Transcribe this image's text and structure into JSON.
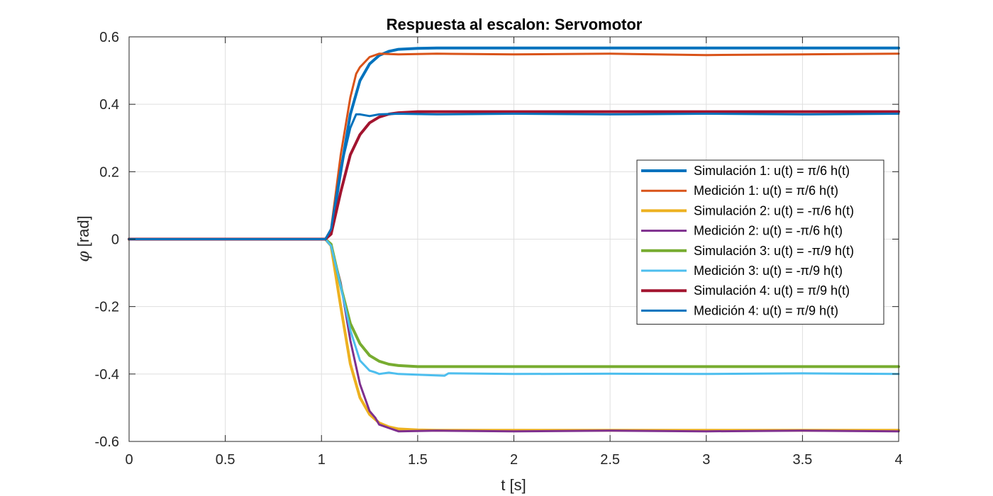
{
  "chart_data": {
    "type": "line",
    "title": "Respuesta al escalon: Servomotor",
    "xlabel": "t [s]",
    "ylabel_symbol": "φ",
    "ylabel_unit": "[rad]",
    "xlim": [
      0,
      4
    ],
    "ylim": [
      -0.6,
      0.6
    ],
    "xticks": [
      0,
      0.5,
      1,
      1.5,
      2,
      2.5,
      3,
      3.5,
      4
    ],
    "xtick_labels": [
      "0",
      "0.5",
      "1",
      "1.5",
      "2",
      "2.5",
      "3",
      "3.5",
      "4"
    ],
    "yticks": [
      -0.6,
      -0.4,
      -0.2,
      0,
      0.2,
      0.4,
      0.6
    ],
    "ytick_labels": [
      "-0.6",
      "-0.4",
      "-0.2",
      "0",
      "0.2",
      "0.4",
      "0.6"
    ],
    "grid": true,
    "legend_position": "right",
    "series": [
      {
        "name": "Simulación 1: u(t) = π/6 h(t)",
        "color": "#0072BD",
        "kind": "simulation",
        "x": [
          0,
          1.02,
          1.05,
          1.1,
          1.15,
          1.2,
          1.25,
          1.3,
          1.35,
          1.4,
          1.5,
          1.6,
          2.0,
          4.0
        ],
        "y": [
          0,
          0,
          0.02,
          0.2,
          0.37,
          0.47,
          0.52,
          0.545,
          0.557,
          0.563,
          0.566,
          0.567,
          0.567,
          0.567
        ]
      },
      {
        "name": "Medición 1: u(t) = π/6 h(t)",
        "color": "#D95319",
        "kind": "measurement",
        "x": [
          0,
          0.5,
          1.02,
          1.05,
          1.1,
          1.15,
          1.18,
          1.2,
          1.25,
          1.3,
          1.4,
          1.6,
          2.0,
          2.5,
          3.0,
          3.5,
          4.0
        ],
        "y": [
          0,
          0,
          0,
          0.03,
          0.25,
          0.42,
          0.49,
          0.51,
          0.54,
          0.55,
          0.548,
          0.55,
          0.548,
          0.55,
          0.546,
          0.548,
          0.55
        ]
      },
      {
        "name": "Simulación 2: u(t) = -π/6 h(t)",
        "color": "#EDB120",
        "kind": "simulation",
        "x": [
          0,
          1.02,
          1.05,
          1.1,
          1.15,
          1.2,
          1.25,
          1.3,
          1.35,
          1.4,
          1.5,
          1.6,
          2.0,
          4.0
        ],
        "y": [
          0,
          0,
          -0.02,
          -0.2,
          -0.37,
          -0.47,
          -0.52,
          -0.545,
          -0.557,
          -0.563,
          -0.566,
          -0.567,
          -0.567,
          -0.567
        ]
      },
      {
        "name": "Medición 2: u(t) = -π/6 h(t)",
        "color": "#7E2F8E",
        "kind": "measurement",
        "x": [
          0,
          1.02,
          1.05,
          1.1,
          1.15,
          1.2,
          1.25,
          1.28,
          1.3,
          1.35,
          1.4,
          1.6,
          2.0,
          2.5,
          3.0,
          3.5,
          4.0
        ],
        "y": [
          0,
          0,
          -0.02,
          -0.13,
          -0.3,
          -0.43,
          -0.51,
          -0.53,
          -0.55,
          -0.56,
          -0.57,
          -0.568,
          -0.57,
          -0.568,
          -0.57,
          -0.568,
          -0.57
        ]
      },
      {
        "name": "Simulación 3: u(t) = -π/9 h(t)",
        "color": "#77AC30",
        "kind": "simulation",
        "x": [
          0,
          1.02,
          1.05,
          1.1,
          1.15,
          1.2,
          1.25,
          1.3,
          1.35,
          1.4,
          1.5,
          1.6,
          2.0,
          4.0
        ],
        "y": [
          0,
          0,
          -0.015,
          -0.14,
          -0.25,
          -0.31,
          -0.345,
          -0.362,
          -0.371,
          -0.375,
          -0.378,
          -0.378,
          -0.378,
          -0.378
        ]
      },
      {
        "name": "Medición 3: u(t) = -π/9 h(t)",
        "color": "#4DBEEE",
        "kind": "measurement",
        "x": [
          0,
          1.02,
          1.05,
          1.1,
          1.15,
          1.2,
          1.25,
          1.28,
          1.3,
          1.35,
          1.4,
          1.64,
          1.66,
          2.0,
          2.5,
          3.0,
          3.5,
          4.0
        ],
        "y": [
          0,
          0,
          -0.02,
          -0.14,
          -0.27,
          -0.36,
          -0.39,
          -0.395,
          -0.4,
          -0.396,
          -0.4,
          -0.405,
          -0.398,
          -0.4,
          -0.399,
          -0.4,
          -0.398,
          -0.4
        ]
      },
      {
        "name": "Simulación 4: u(t) = π/9 h(t)",
        "color": "#A2142F",
        "kind": "simulation",
        "x": [
          0,
          1.02,
          1.05,
          1.1,
          1.15,
          1.2,
          1.25,
          1.3,
          1.35,
          1.4,
          1.5,
          1.6,
          2.0,
          4.0
        ],
        "y": [
          0,
          0,
          0.015,
          0.14,
          0.25,
          0.31,
          0.345,
          0.362,
          0.371,
          0.375,
          0.378,
          0.378,
          0.378,
          0.378
        ]
      },
      {
        "name": "Medición 4: u(t) = π/9 h(t)",
        "color": "#0072BD",
        "kind": "measurement",
        "x": [
          0,
          1.02,
          1.05,
          1.1,
          1.15,
          1.18,
          1.2,
          1.25,
          1.3,
          1.4,
          1.6,
          2.0,
          2.5,
          3.0,
          3.5,
          4.0
        ],
        "y": [
          0,
          0,
          0.03,
          0.21,
          0.33,
          0.37,
          0.37,
          0.365,
          0.37,
          0.372,
          0.37,
          0.372,
          0.37,
          0.372,
          0.37,
          0.372
        ]
      }
    ]
  }
}
